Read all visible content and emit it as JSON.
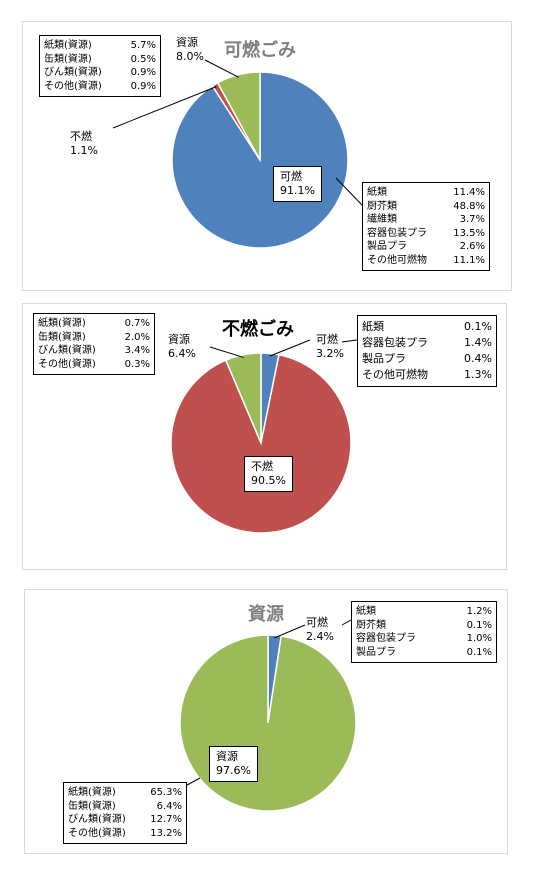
{
  "chart_data": [
    {
      "type": "pie",
      "title": "可燃ごみ",
      "slices": [
        {
          "name": "可燃",
          "value": 91.1,
          "label": "91.1%",
          "color": "#4f81bd"
        },
        {
          "name": "不燃",
          "value": 1.1,
          "label": "1.1%",
          "color": "#c0504d"
        },
        {
          "name": "資源",
          "value": 8.0,
          "label": "8.0%",
          "color": "#9bbb59"
        }
      ],
      "breakdowns": {
        "main": [
          {
            "name": "紙類",
            "value": "11.4%"
          },
          {
            "name": "厨芥類",
            "value": "48.8%"
          },
          {
            "name": "繊維類",
            "value": "3.7%"
          },
          {
            "name": "容器包装プラ",
            "value": "13.5%"
          },
          {
            "name": "製品プラ",
            "value": "2.6%"
          },
          {
            "name": "その他可燃物",
            "value": "11.1%"
          }
        ],
        "resource": [
          {
            "name": "紙類(資源)",
            "value": "5.7%"
          },
          {
            "name": "缶類(資源)",
            "value": "0.5%"
          },
          {
            "name": "びん類(資源)",
            "value": "0.9%"
          },
          {
            "name": "その他(資源)",
            "value": "0.9%"
          }
        ]
      }
    },
    {
      "type": "pie",
      "title": "不燃ごみ",
      "slices": [
        {
          "name": "可燃",
          "value": 3.2,
          "label": "3.2%",
          "color": "#4f81bd"
        },
        {
          "name": "不燃",
          "value": 90.5,
          "label": "90.5%",
          "color": "#c0504d"
        },
        {
          "name": "資源",
          "value": 6.4,
          "label": "6.4%",
          "color": "#9bbb59"
        }
      ],
      "breakdowns": {
        "main": [
          {
            "name": "紙類",
            "value": "0.1%"
          },
          {
            "name": "容器包装プラ",
            "value": "1.4%"
          },
          {
            "name": "製品プラ",
            "value": "0.4%"
          },
          {
            "name": "その他可燃物",
            "value": "1.3%"
          }
        ],
        "resource": [
          {
            "name": "紙類(資源)",
            "value": "0.7%"
          },
          {
            "name": "缶類(資源)",
            "value": "2.0%"
          },
          {
            "name": "びん類(資源)",
            "value": "3.4%"
          },
          {
            "name": "その他(資源)",
            "value": "0.3%"
          }
        ]
      }
    },
    {
      "type": "pie",
      "title": "資源",
      "slices": [
        {
          "name": "可燃",
          "value": 2.4,
          "label": "2.4%",
          "color": "#4f81bd"
        },
        {
          "name": "資源",
          "value": 97.6,
          "label": "97.6%",
          "color": "#9bbb59"
        }
      ],
      "breakdowns": {
        "main": [
          {
            "name": "紙類",
            "value": "1.2%"
          },
          {
            "name": "厨芥類",
            "value": "0.1%"
          },
          {
            "name": "容器包装プラ",
            "value": "1.0%"
          },
          {
            "name": "製品プラ",
            "value": "0.1%"
          }
        ],
        "resource": [
          {
            "name": "紙類(資源)",
            "value": "65.3%"
          },
          {
            "name": "缶類(資源)",
            "value": "6.4%"
          },
          {
            "name": "びん類(資源)",
            "value": "12.7%"
          },
          {
            "name": "その他(資源)",
            "value": "13.2%"
          }
        ]
      }
    }
  ]
}
